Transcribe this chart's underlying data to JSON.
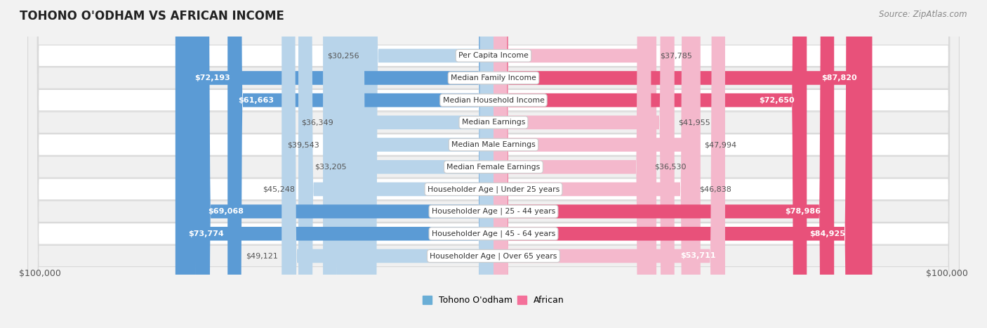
{
  "title": "TOHONO O'ODHAM VS AFRICAN INCOME",
  "source": "Source: ZipAtlas.com",
  "categories": [
    "Per Capita Income",
    "Median Family Income",
    "Median Household Income",
    "Median Earnings",
    "Median Male Earnings",
    "Median Female Earnings",
    "Householder Age | Under 25 years",
    "Householder Age | 25 - 44 years",
    "Householder Age | 45 - 64 years",
    "Householder Age | Over 65 years"
  ],
  "tohono_values": [
    30256,
    72193,
    61663,
    36349,
    39543,
    33205,
    45248,
    69068,
    73774,
    49121
  ],
  "african_values": [
    37785,
    87820,
    72650,
    41955,
    47994,
    36530,
    46838,
    78986,
    84925,
    53711
  ],
  "tohono_labels": [
    "$30,256",
    "$72,193",
    "$61,663",
    "$36,349",
    "$39,543",
    "$33,205",
    "$45,248",
    "$69,068",
    "$73,774",
    "$49,121"
  ],
  "african_labels": [
    "$37,785",
    "$87,820",
    "$72,650",
    "$41,955",
    "$47,994",
    "$36,530",
    "$46,838",
    "$78,986",
    "$84,925",
    "$53,711"
  ],
  "tohono_color_light": "#b8d4ea",
  "tohono_color_dark": "#5b9bd5",
  "african_color_light": "#f4b8cc",
  "african_color_dark": "#e8517a",
  "max_value": 100000,
  "background_color": "#f2f2f2",
  "row_bg_odd": "#ffffff",
  "row_bg_even": "#f5f5f5",
  "label_color_inside_white": "#ffffff",
  "label_color_outside": "#555555",
  "inside_threshold": 50000,
  "legend_tohono": "Tohono O'odham",
  "legend_african": "African",
  "axis_label_left": "$100,000",
  "axis_label_right": "$100,000",
  "tohono_legend_color": "#6aaed6",
  "african_legend_color": "#f4709a"
}
